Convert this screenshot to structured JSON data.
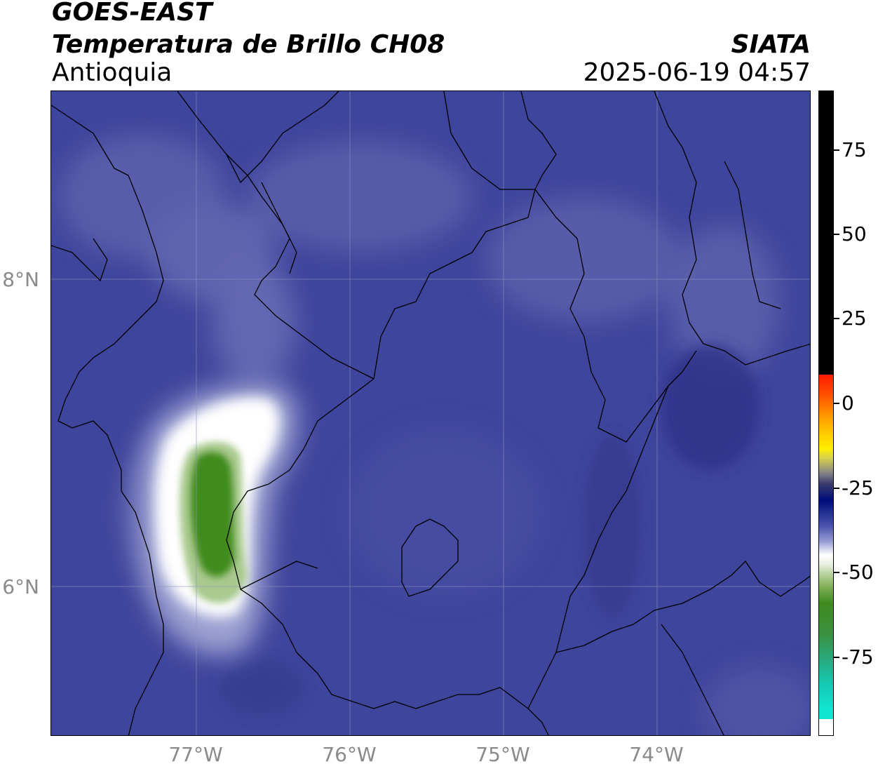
{
  "header": {
    "satellite": "GOES-EAST",
    "product": "Temperatura de Brillo CH08",
    "organization": "SIATA",
    "region": "Antioquia",
    "timestamp": "2025-06-19 04:57"
  },
  "map": {
    "lat_labels": [
      "8°N",
      "6°N"
    ],
    "lon_labels": [
      "77°W",
      "76°W",
      "75°W",
      "74°W"
    ],
    "extent": {
      "lon": [
        -77.95,
        -73.0
      ],
      "lat": [
        5.05,
        9.25
      ]
    },
    "background_color": "#3e459c"
  },
  "colorbar": {
    "ticks": [
      "75",
      "50",
      "25",
      "0",
      "-25",
      "-50",
      "-75"
    ],
    "tick_values": [
      75,
      50,
      25,
      0,
      -25,
      -50,
      -75
    ],
    "range": [
      -92,
      92
    ],
    "colors": {
      "warm": "#000000",
      "red": "#ff1a00",
      "orange": "#ff9000",
      "yellow": "#ffee00",
      "navy": "#000c7a",
      "blue": "#4a52ad",
      "white": "#ffffff",
      "green": "#3f8b1f",
      "cyan": "#10e5d2"
    }
  }
}
